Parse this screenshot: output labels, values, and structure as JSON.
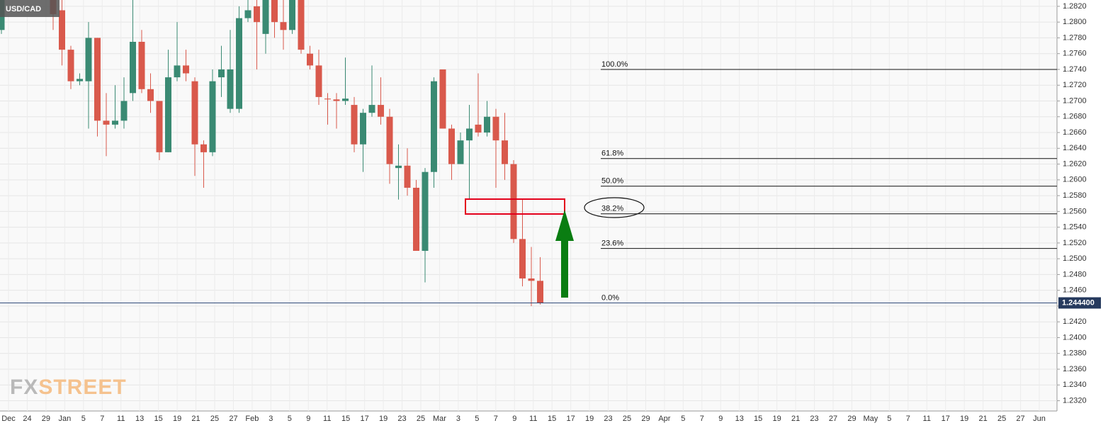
{
  "chart_data": {
    "type": "candlestick",
    "title": "USD/CAD",
    "watermark": [
      "FX",
      "STREET"
    ],
    "up_color": "#3a8a73",
    "down_color": "#d9594c",
    "open": [
      1.279,
      1.283,
      1.2815,
      1.2765,
      1.2725,
      1.2725,
      1.278,
      1.2675,
      1.267,
      1.2675,
      1.271,
      1.2775,
      1.2715,
      1.27,
      1.2635,
      1.273,
      1.2745,
      1.2725,
      1.2645,
      1.2635,
      1.273,
      1.269,
      1.269,
      1.2805,
      1.282,
      1.2785,
      1.283,
      1.28,
      1.279,
      1.283,
      1.276,
      1.2745,
      1.2703,
      1.2702,
      1.27,
      1.2695,
      1.2645,
      1.2685,
      1.2695,
      1.268,
      1.2615,
      1.2618,
      1.259,
      1.251,
      1.261,
      1.274,
      1.2665,
      1.262,
      1.265,
      1.267,
      1.266,
      1.268,
      1.265,
      1.262,
      1.2525,
      1.2475,
      1.2472
    ],
    "high": [
      1.284,
      1.284,
      1.283,
      1.277,
      1.2735,
      1.28,
      1.278,
      1.271,
      1.272,
      1.273,
      1.283,
      1.279,
      1.2735,
      1.27,
      1.2765,
      1.28,
      1.2765,
      1.273,
      1.265,
      1.274,
      1.277,
      1.279,
      1.282,
      1.283,
      1.283,
      1.284,
      1.284,
      1.283,
      1.284,
      1.284,
      1.277,
      1.2765,
      1.271,
      1.271,
      1.2755,
      1.2705,
      1.269,
      1.2745,
      1.273,
      1.269,
      1.2645,
      1.264,
      1.26,
      1.2615,
      1.273,
      1.274,
      1.267,
      1.266,
      1.2695,
      1.2735,
      1.27,
      1.269,
      1.2685,
      1.2625,
      1.2575,
      1.2515,
      1.2502
    ],
    "low": [
      1.2785,
      1.279,
      1.2745,
      1.2715,
      1.272,
      1.2665,
      1.2655,
      1.263,
      1.2665,
      1.2665,
      1.27,
      1.271,
      1.2685,
      1.2625,
      1.2635,
      1.2725,
      1.2725,
      1.2605,
      1.259,
      1.263,
      1.2705,
      1.2685,
      1.2685,
      1.28,
      1.274,
      1.276,
      1.278,
      1.2765,
      1.2785,
      1.276,
      1.274,
      1.2695,
      1.267,
      1.2665,
      1.2695,
      1.2635,
      1.261,
      1.268,
      1.267,
      1.2595,
      1.2575,
      1.258,
      1.251,
      1.247,
      1.259,
      1.2665,
      1.26,
      1.262,
      1.2575,
      1.2655,
      1.2655,
      1.259,
      1.26,
      1.252,
      1.2465,
      1.244,
      1.2442
    ],
    "close": [
      1.283,
      1.281,
      1.2765,
      1.2725,
      1.2728,
      1.278,
      1.2675,
      1.267,
      1.2675,
      1.27,
      1.2775,
      1.2715,
      1.27,
      1.2635,
      1.273,
      1.2745,
      1.2735,
      1.2645,
      1.2635,
      1.2725,
      1.274,
      1.274,
      1.2805,
      1.2815,
      1.28,
      1.283,
      1.28,
      1.279,
      1.283,
      1.2765,
      1.2745,
      1.2705,
      1.2702,
      1.27,
      1.2703,
      1.2645,
      1.2685,
      1.2695,
      1.268,
      1.262,
      1.2618,
      1.259,
      1.251,
      1.261,
      1.2725,
      1.2665,
      1.262,
      1.265,
      1.2665,
      1.266,
      1.268,
      1.265,
      1.262,
      1.2525,
      1.2475,
      1.2472,
      1.2444
    ],
    "fib_levels": [
      {
        "label": "100.0%",
        "value": 1.274
      },
      {
        "label": "61.8%",
        "value": 1.2627
      },
      {
        "label": "50.0%",
        "value": 1.2592
      },
      {
        "label": "38.2%",
        "value": 1.2557
      },
      {
        "label": "23.6%",
        "value": 1.2513
      },
      {
        "label": "0.0%",
        "value": 1.2444
      }
    ],
    "current_price": {
      "value": 1.2444,
      "label": "1.244400"
    },
    "x_labels": [
      "Dec",
      "24",
      "29",
      "Jan",
      "5",
      "7",
      "11",
      "13",
      "15",
      "19",
      "21",
      "25",
      "27",
      "Feb",
      "3",
      "5",
      "9",
      "11",
      "15",
      "17",
      "19",
      "23",
      "25",
      "Mar",
      "3",
      "5",
      "7",
      "9",
      "11",
      "15",
      "17",
      "19",
      "23",
      "25",
      "29",
      "Apr",
      "5",
      "7",
      "9",
      "13",
      "15",
      "19",
      "21",
      "23",
      "27",
      "29",
      "May",
      "5",
      "7",
      "11",
      "17",
      "19",
      "21",
      "25",
      "27",
      "Jun"
    ],
    "ylim": [
      1.2307,
      1.2828
    ],
    "yticks": [
      {
        "value": 1.232,
        "label": "1.2320"
      },
      {
        "value": 1.234,
        "label": "1.2340"
      },
      {
        "value": 1.236,
        "label": "1.2360"
      },
      {
        "value": 1.238,
        "label": "1.2380"
      },
      {
        "value": 1.24,
        "label": "1.2400"
      },
      {
        "value": 1.242,
        "label": "1.2420"
      },
      {
        "value": 1.244,
        "label": "1.2440"
      },
      {
        "value": 1.246,
        "label": "1.2460"
      },
      {
        "value": 1.248,
        "label": "1.2480"
      },
      {
        "value": 1.25,
        "label": "1.2500"
      },
      {
        "value": 1.252,
        "label": "1.2520"
      },
      {
        "value": 1.254,
        "label": "1.2540"
      },
      {
        "value": 1.256,
        "label": "1.2560"
      },
      {
        "value": 1.258,
        "label": "1.2580"
      },
      {
        "value": 1.26,
        "label": "1.2600"
      },
      {
        "value": 1.262,
        "label": "1.2620"
      },
      {
        "value": 1.264,
        "label": "1.2640"
      },
      {
        "value": 1.266,
        "label": "1.2660"
      },
      {
        "value": 1.268,
        "label": "1.2680"
      },
      {
        "value": 1.27,
        "label": "1.2700"
      },
      {
        "value": 1.272,
        "label": "1.2720"
      },
      {
        "value": 1.274,
        "label": "1.2740"
      },
      {
        "value": 1.276,
        "label": "1.2760"
      },
      {
        "value": 1.278,
        "label": "1.2780"
      },
      {
        "value": 1.28,
        "label": "1.2800"
      },
      {
        "value": 1.282,
        "label": "1.2820"
      }
    ],
    "grid": true
  }
}
